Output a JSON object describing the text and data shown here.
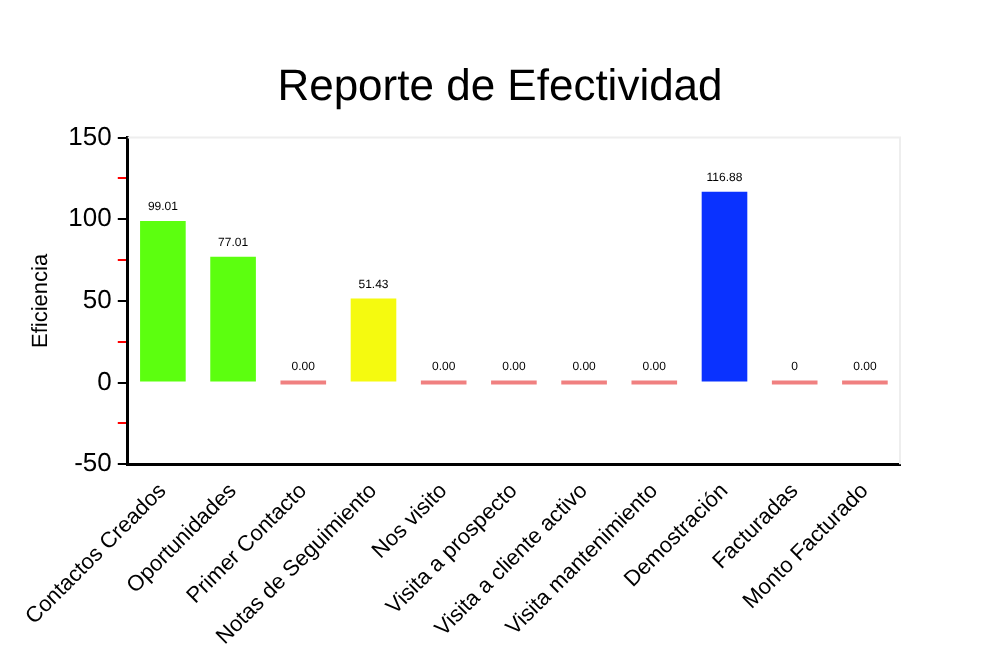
{
  "chart_data": {
    "type": "bar",
    "title": "Reporte de Efectividad",
    "ylabel": "Eficiencia",
    "categories": [
      "Contactos Creados",
      "Oportunidades",
      "Primer Contacto",
      "Notas de Seguimiento",
      "Nos visito",
      "Visita a prospecto",
      "Visita a cliente activo",
      "Visita mantenimiento",
      "Demostración",
      "Facturadas",
      "Monto Facturado"
    ],
    "values": [
      99.01,
      77.01,
      0,
      51.43,
      0,
      0,
      0,
      0,
      116.88,
      0,
      0
    ],
    "colors": [
      "#5cff0f",
      "#5cff0f",
      "#f08080",
      "#f5fa0f",
      "#f08080",
      "#f08080",
      "#f08080",
      "#f08080",
      "#0a32ff",
      "#f08080",
      "#f08080"
    ],
    "value_labels": [
      "99.01",
      "77.01",
      "0.00",
      "51.43",
      "0.00",
      "0.00",
      "0.00",
      "0.00",
      "116.88",
      "0",
      "0.00"
    ],
    "ylim": [
      -50,
      150
    ],
    "yticks": [
      -50,
      {
        "value": -25,
        "label": null
      },
      0,
      {
        "value": 25,
        "label": null
      },
      50,
      {
        "value": 75,
        "label": null
      },
      100,
      {
        "value": 125,
        "label": null
      },
      150
    ],
    "grid": false,
    "legend": false
  }
}
